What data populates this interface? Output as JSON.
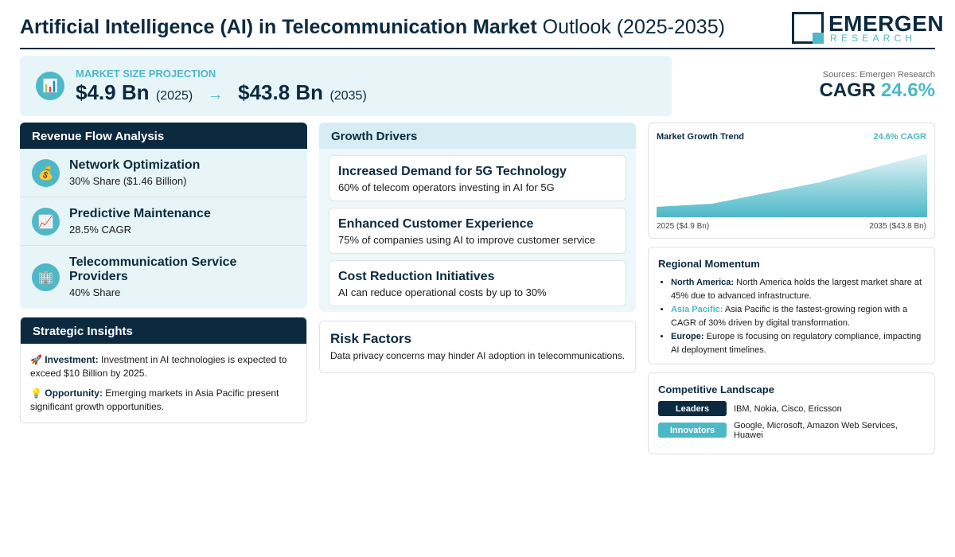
{
  "header": {
    "title_bold": "Artificial Intelligence (AI) in Telecommunication Market",
    "title_rest": "Outlook (2025-2035)",
    "logo_top": "EMERGEN",
    "logo_bottom": "RESEARCH"
  },
  "projection": {
    "icon": "bar-chart-icon",
    "label": "MARKET SIZE PROJECTION",
    "start_value": "$4.9 Bn",
    "start_year": "(2025)",
    "arrow": "→",
    "end_value": "$43.8 Bn",
    "end_year": "(2035)"
  },
  "summary": {
    "sources": "Sources: Emergen Research",
    "cagr_label": "CAGR",
    "cagr_value": "24.6%"
  },
  "revenue": {
    "title": "Revenue Flow Analysis",
    "items": [
      {
        "icon": "money-bag-icon",
        "glyph": "💰",
        "name": "Network Optimization",
        "sub": "30% Share ($1.46 Billion)"
      },
      {
        "icon": "trend-chart-icon",
        "glyph": "📈",
        "name": "Predictive Maintenance",
        "sub": "28.5% CAGR"
      },
      {
        "icon": "office-building-icon",
        "glyph": "🏢",
        "name": "Telecommunication Service Providers",
        "sub": "40% Share"
      }
    ]
  },
  "insights": {
    "title": "Strategic Insights",
    "items": [
      {
        "icon": "rocket-icon",
        "glyph": "🚀",
        "label": "Investment:",
        "text": "Investment in AI technologies is expected to exceed $10 Billion by 2025."
      },
      {
        "icon": "lightbulb-icon",
        "glyph": "💡",
        "label": "Opportunity:",
        "text": "Emerging markets in Asia Pacific present significant growth opportunities."
      }
    ]
  },
  "drivers": {
    "title": "Growth Drivers",
    "items": [
      {
        "title": "Increased Demand for 5G Technology",
        "text": "60% of telecom operators investing in AI for 5G"
      },
      {
        "title": "Enhanced Customer Experience",
        "text": "75% of companies using AI to improve customer service"
      },
      {
        "title": "Cost Reduction Initiatives",
        "text": "AI can reduce operational costs by up to 30%"
      }
    ]
  },
  "risk": {
    "title": "Risk Factors",
    "text": "Data privacy concerns may hinder AI adoption in telecommunications."
  },
  "trend": {
    "title": "Market Growth Trend",
    "cagr": "24.6% CAGR",
    "start_label": "2025 ($4.9 Bn)",
    "end_label": "2035 ($43.8 Bn)",
    "colors": {
      "top": "#e4f4f7",
      "bottom": "#4db8c8"
    }
  },
  "regional": {
    "title": "Regional Momentum",
    "items": [
      {
        "name": "North America:",
        "accent": false,
        "text": "North America holds the largest market share at 45% due to advanced infrastructure."
      },
      {
        "name": "Asia Pacific:",
        "accent": true,
        "text": "Asia Pacific is the fastest-growing region with a CAGR of 30% driven by digital transformation."
      },
      {
        "name": "Europe:",
        "accent": false,
        "text": "Europe is focusing on regulatory compliance, impacting AI deployment timelines."
      }
    ]
  },
  "competitive": {
    "title": "Competitive Landscape",
    "leaders_label": "Leaders",
    "leaders": "IBM, Nokia, Cisco, Ericsson",
    "innovators_label": "Innovators",
    "innovators": "Google, Microsoft, Amazon Web Services, Huawei"
  },
  "colors": {
    "navy": "#0b2a40",
    "teal": "#4db8c8",
    "panel": "#e8f5f8"
  }
}
